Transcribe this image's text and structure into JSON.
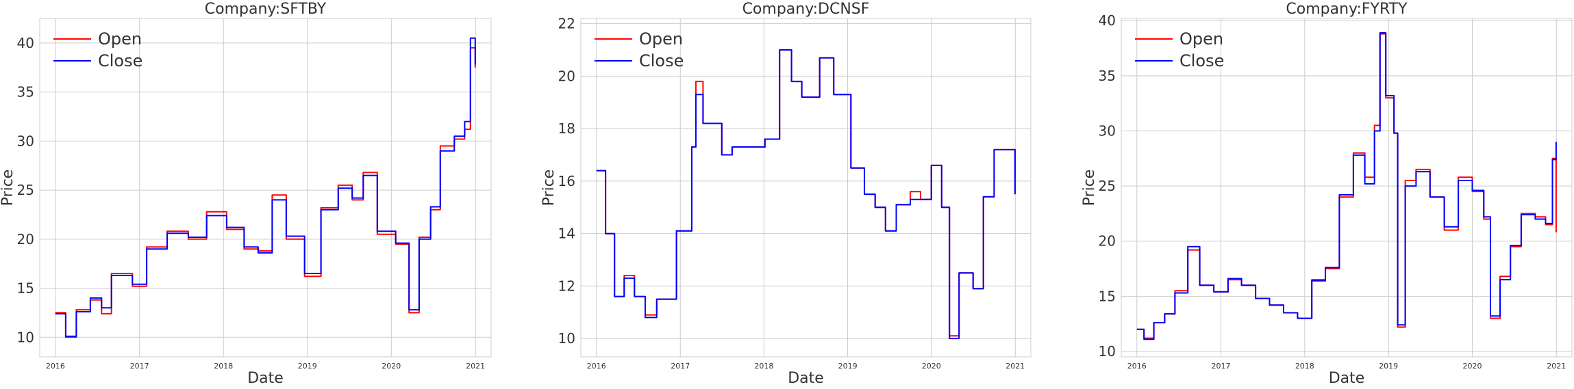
{
  "chart_data": [
    {
      "type": "line",
      "title": "Company:SFTBY",
      "xlabel": "Date",
      "ylabel": "Price",
      "xlim": [
        "2015-10-25",
        "2021-03-10"
      ],
      "ylim": [
        8,
        42.5
      ],
      "yticks": [
        10,
        15,
        20,
        25,
        30,
        35,
        40
      ],
      "xticks": [
        "2016",
        "2017",
        "2018",
        "2019",
        "2020",
        "2021"
      ],
      "grid": true,
      "legend_position": "top-left",
      "colors": {
        "Open": "#ff0000",
        "Close": "#0000ff"
      },
      "series": [
        {
          "name": "Open",
          "x": [
            "2016-01-01",
            "2016-02-15",
            "2016-04-01",
            "2016-06-01",
            "2016-07-20",
            "2016-09-01",
            "2016-12-01",
            "2017-02-01",
            "2017-05-01",
            "2017-08-01",
            "2017-10-20",
            "2018-01-15",
            "2018-04-01",
            "2018-06-01",
            "2018-08-01",
            "2018-10-01",
            "2018-12-20",
            "2019-03-01",
            "2019-05-15",
            "2019-07-15",
            "2019-09-01",
            "2019-11-01",
            "2020-01-20",
            "2020-03-18",
            "2020-05-01",
            "2020-06-20",
            "2020-08-01",
            "2020-10-01",
            "2020-11-15",
            "2020-12-10",
            "2020-12-31"
          ],
          "y": [
            12.5,
            10.0,
            12.8,
            13.8,
            12.4,
            16.5,
            15.2,
            19.2,
            20.8,
            20.0,
            22.8,
            21.0,
            19.0,
            18.8,
            24.5,
            20.0,
            16.2,
            23.2,
            25.5,
            24.0,
            26.8,
            20.5,
            19.5,
            12.5,
            20.2,
            23.0,
            29.5,
            30.2,
            31.2,
            39.5,
            37.5
          ]
        },
        {
          "name": "Close",
          "x": [
            "2016-01-01",
            "2016-02-15",
            "2016-04-01",
            "2016-06-01",
            "2016-07-20",
            "2016-09-01",
            "2016-12-01",
            "2017-02-01",
            "2017-05-01",
            "2017-08-01",
            "2017-10-20",
            "2018-01-15",
            "2018-04-01",
            "2018-06-01",
            "2018-08-01",
            "2018-10-01",
            "2018-12-20",
            "2019-03-01",
            "2019-05-15",
            "2019-07-15",
            "2019-09-01",
            "2019-11-01",
            "2020-01-20",
            "2020-03-18",
            "2020-05-01",
            "2020-06-20",
            "2020-08-01",
            "2020-10-01",
            "2020-11-15",
            "2020-12-10",
            "2020-12-31"
          ],
          "y": [
            12.4,
            10.1,
            12.6,
            14.0,
            13.0,
            16.3,
            15.4,
            19.0,
            20.6,
            20.2,
            22.4,
            21.2,
            19.2,
            18.6,
            24.0,
            20.3,
            16.5,
            23.0,
            25.2,
            24.2,
            26.5,
            20.8,
            19.6,
            12.8,
            20.0,
            23.3,
            29.0,
            30.5,
            32.0,
            40.5,
            37.8
          ]
        }
      ]
    },
    {
      "type": "line",
      "title": "Company:DCNSF",
      "xlabel": "Date",
      "ylabel": "Price",
      "xlim": [
        "2015-10-25",
        "2021-03-10"
      ],
      "ylim": [
        9.3,
        22.2
      ],
      "yticks": [
        10,
        12,
        14,
        16,
        18,
        20,
        22
      ],
      "xticks": [
        "2016",
        "2017",
        "2018",
        "2019",
        "2020",
        "2021"
      ],
      "grid": true,
      "legend_position": "top-left",
      "colors": {
        "Open": "#ff0000",
        "Close": "#0000ff"
      },
      "series": [
        {
          "name": "Open",
          "x": [
            "2016-01-01",
            "2016-02-10",
            "2016-03-20",
            "2016-05-01",
            "2016-06-15",
            "2016-08-01",
            "2016-09-20",
            "2016-12-15",
            "2017-02-20",
            "2017-03-10",
            "2017-04-10",
            "2017-07-01",
            "2017-08-15",
            "2018-01-05",
            "2018-03-10",
            "2018-05-01",
            "2018-06-15",
            "2018-09-01",
            "2018-11-01",
            "2019-01-15",
            "2019-03-15",
            "2019-05-01",
            "2019-06-15",
            "2019-08-01",
            "2019-10-01",
            "2019-11-15",
            "2020-01-01",
            "2020-02-15",
            "2020-03-20",
            "2020-05-01",
            "2020-07-01",
            "2020-08-15",
            "2020-10-01",
            "2020-12-31"
          ],
          "y": [
            16.4,
            14.0,
            11.6,
            12.4,
            11.6,
            10.9,
            11.5,
            14.1,
            17.3,
            19.8,
            18.2,
            17.0,
            17.3,
            17.6,
            21.0,
            19.8,
            19.2,
            20.7,
            19.3,
            16.5,
            15.5,
            15.0,
            14.1,
            15.1,
            15.6,
            15.3,
            16.6,
            15.0,
            10.1,
            12.5,
            11.9,
            15.4,
            17.2,
            15.5
          ]
        },
        {
          "name": "Close",
          "x": [
            "2016-01-01",
            "2016-02-10",
            "2016-03-20",
            "2016-05-01",
            "2016-06-15",
            "2016-08-01",
            "2016-09-20",
            "2016-12-15",
            "2017-02-20",
            "2017-03-10",
            "2017-04-10",
            "2017-07-01",
            "2017-08-15",
            "2018-01-05",
            "2018-03-10",
            "2018-05-01",
            "2018-06-15",
            "2018-09-01",
            "2018-11-01",
            "2019-01-15",
            "2019-03-15",
            "2019-05-01",
            "2019-06-15",
            "2019-08-01",
            "2019-10-01",
            "2019-11-15",
            "2020-01-01",
            "2020-02-15",
            "2020-03-20",
            "2020-05-01",
            "2020-07-01",
            "2020-08-15",
            "2020-10-01",
            "2020-12-31"
          ],
          "y": [
            16.4,
            14.0,
            11.6,
            12.3,
            11.6,
            10.8,
            11.5,
            14.1,
            17.3,
            19.3,
            18.2,
            17.0,
            17.3,
            17.6,
            21.0,
            19.8,
            19.2,
            20.7,
            19.3,
            16.5,
            15.5,
            15.0,
            14.1,
            15.1,
            15.3,
            15.3,
            16.6,
            15.0,
            10.0,
            12.5,
            11.9,
            15.4,
            17.2,
            15.5
          ]
        }
      ]
    },
    {
      "type": "line",
      "title": "Company:FYRTY",
      "xlabel": "Date",
      "ylabel": "Price",
      "xlim": [
        "2015-10-25",
        "2021-03-10"
      ],
      "ylim": [
        9.5,
        40.2
      ],
      "yticks": [
        10,
        15,
        20,
        25,
        30,
        35,
        40
      ],
      "xticks": [
        "2016",
        "2017",
        "2018",
        "2019",
        "2020",
        "2021"
      ],
      "grid": true,
      "legend_position": "top-left",
      "colors": {
        "Open": "#ff0000",
        "Close": "#0000ff"
      },
      "series": [
        {
          "name": "Open",
          "x": [
            "2016-01-01",
            "2016-02-01",
            "2016-03-15",
            "2016-05-01",
            "2016-06-15",
            "2016-08-10",
            "2016-10-01",
            "2016-12-01",
            "2017-02-01",
            "2017-04-01",
            "2017-06-01",
            "2017-08-01",
            "2017-10-01",
            "2017-12-01",
            "2018-02-01",
            "2018-04-01",
            "2018-06-01",
            "2018-08-01",
            "2018-09-20",
            "2018-11-01",
            "2018-11-25",
            "2018-12-20",
            "2019-01-25",
            "2019-02-10",
            "2019-03-15",
            "2019-05-01",
            "2019-07-01",
            "2019-09-01",
            "2019-11-01",
            "2020-01-01",
            "2020-02-20",
            "2020-03-20",
            "2020-05-01",
            "2020-06-15",
            "2020-08-01",
            "2020-10-01",
            "2020-11-15",
            "2020-12-15",
            "2020-12-31"
          ],
          "y": [
            12.0,
            11.2,
            12.6,
            13.4,
            15.5,
            19.2,
            16.0,
            15.4,
            16.5,
            16.0,
            14.8,
            14.2,
            13.5,
            13.0,
            16.5,
            17.5,
            24.0,
            28.0,
            25.8,
            30.5,
            38.8,
            33.0,
            29.8,
            12.2,
            25.5,
            26.5,
            24.0,
            21.0,
            25.8,
            24.5,
            22.0,
            13.0,
            16.8,
            19.5,
            22.5,
            22.2,
            21.5,
            27.5,
            20.8
          ]
        },
        {
          "name": "Close",
          "x": [
            "2016-01-01",
            "2016-02-01",
            "2016-03-15",
            "2016-05-01",
            "2016-06-15",
            "2016-08-10",
            "2016-10-01",
            "2016-12-01",
            "2017-02-01",
            "2017-04-01",
            "2017-06-01",
            "2017-08-01",
            "2017-10-01",
            "2017-12-01",
            "2018-02-01",
            "2018-04-01",
            "2018-06-01",
            "2018-08-01",
            "2018-09-20",
            "2018-11-01",
            "2018-11-25",
            "2018-12-20",
            "2019-01-25",
            "2019-02-10",
            "2019-03-15",
            "2019-05-01",
            "2019-07-01",
            "2019-09-01",
            "2019-11-01",
            "2020-01-01",
            "2020-02-20",
            "2020-03-20",
            "2020-05-01",
            "2020-06-15",
            "2020-08-01",
            "2020-10-01",
            "2020-11-15",
            "2020-12-15",
            "2020-12-31"
          ],
          "y": [
            12.0,
            11.1,
            12.6,
            13.4,
            15.3,
            19.5,
            16.0,
            15.4,
            16.6,
            16.0,
            14.8,
            14.2,
            13.5,
            13.0,
            16.4,
            17.6,
            24.2,
            27.8,
            25.2,
            30.0,
            38.9,
            33.2,
            29.8,
            12.4,
            25.0,
            26.3,
            24.0,
            21.3,
            25.5,
            24.6,
            22.2,
            13.2,
            16.5,
            19.6,
            22.4,
            22.0,
            21.6,
            27.4,
            29.0
          ]
        }
      ]
    }
  ]
}
